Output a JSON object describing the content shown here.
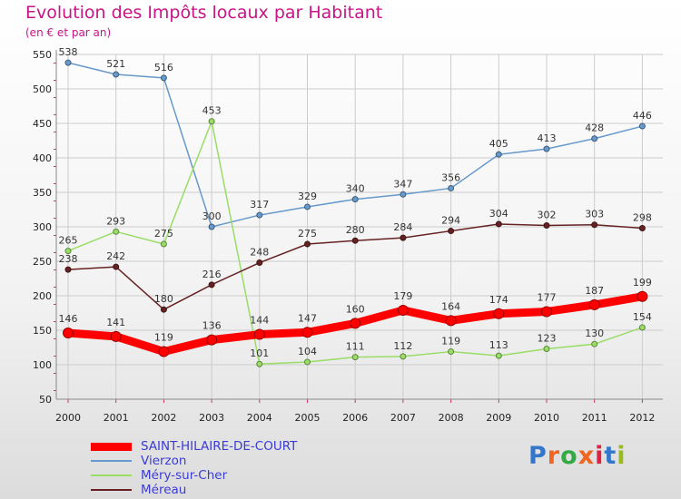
{
  "title": "Evolution des Impôts locaux par Habitant",
  "subtitle": "(en € et par an)",
  "logo_text": "Proxiti",
  "chart_data": {
    "type": "line",
    "x": [
      "2000",
      "2001",
      "2002",
      "2003",
      "2004",
      "2005",
      "2006",
      "2007",
      "2008",
      "2009",
      "2010",
      "2011",
      "2012"
    ],
    "ylim": [
      50,
      550
    ],
    "yticks": [
      50,
      100,
      150,
      200,
      250,
      300,
      350,
      400,
      450,
      500,
      550
    ],
    "grid": true,
    "legend_position": "bottom-left",
    "series": [
      {
        "name": "SAINT-HILAIRE-DE-COURT",
        "color": "#ff0000",
        "width": 9,
        "values": [
          146,
          141,
          119,
          136,
          144,
          147,
          160,
          179,
          164,
          174,
          177,
          187,
          199
        ]
      },
      {
        "name": "Vierzon",
        "color": "#6699cc",
        "width": 1.5,
        "values": [
          538,
          521,
          516,
          300,
          317,
          329,
          340,
          347,
          356,
          405,
          413,
          428,
          446
        ]
      },
      {
        "name": "Méry-sur-Cher",
        "color": "#99dd66",
        "width": 1.5,
        "values": [
          265,
          293,
          275,
          453,
          101,
          104,
          111,
          112,
          119,
          113,
          123,
          130,
          154
        ]
      },
      {
        "name": "Méreau",
        "color": "#662222",
        "width": 1.5,
        "values": [
          238,
          242,
          180,
          216,
          248,
          275,
          280,
          284,
          294,
          304,
          302,
          303,
          298
        ]
      }
    ]
  }
}
